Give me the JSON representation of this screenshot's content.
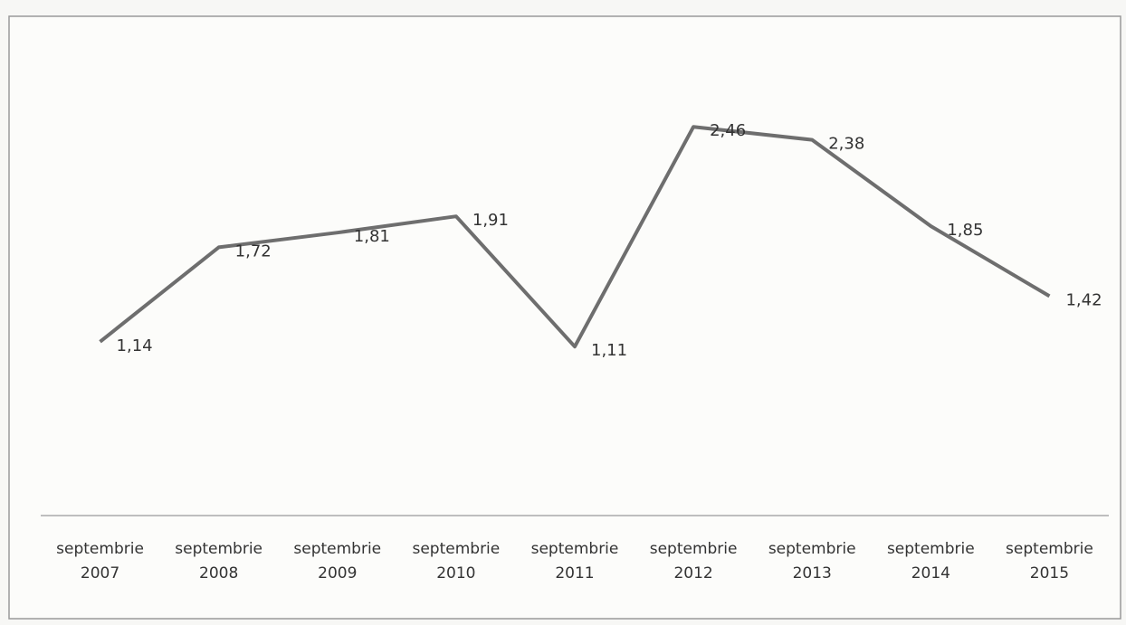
{
  "chart_data": {
    "type": "line",
    "categories": [
      "septembrie 2007",
      "septembrie 2008",
      "septembrie 2009",
      "septembrie 2010",
      "septembrie 2011",
      "septembrie 2012",
      "septembrie 2013",
      "septembrie 2014",
      "septembrie 2015"
    ],
    "values": [
      1.14,
      1.72,
      1.81,
      1.91,
      1.11,
      2.46,
      2.38,
      1.85,
      1.42
    ],
    "value_labels": [
      "1,14",
      "1,72",
      "1,81",
      "1,91",
      "1,11",
      "2,46",
      "2,38",
      "1,85",
      "1,42"
    ],
    "color": "#6e6e6e",
    "ylim": [
      0,
      3
    ]
  }
}
